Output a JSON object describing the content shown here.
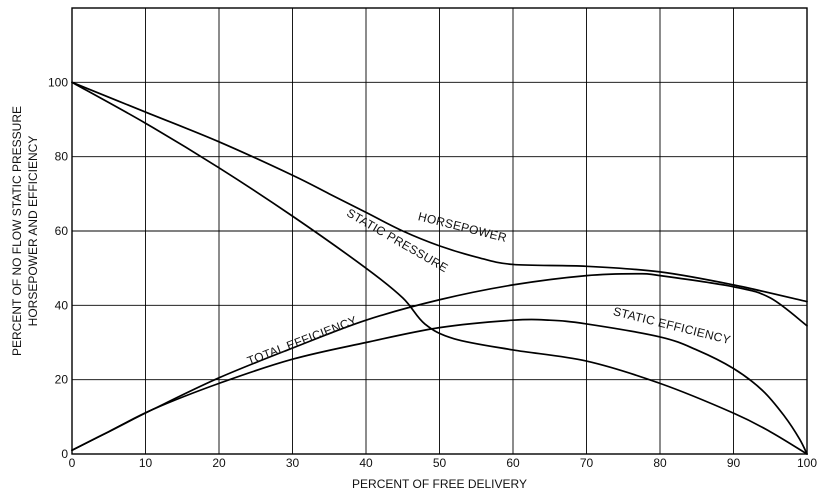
{
  "chart_data": {
    "type": "line",
    "title": "",
    "xlabel": "PERCENT OF FREE DELIVERY",
    "ylabel_lines": [
      "PERCENT OF NO FLOW STATIC PRESSURE",
      "HORSEPOWER AND EFFICIENCY"
    ],
    "xlim": [
      0,
      100
    ],
    "ylim": [
      0,
      120
    ],
    "xticks": [
      "0",
      "10",
      "20",
      "30",
      "40",
      "50",
      "60",
      "70",
      "80",
      "90",
      "100"
    ],
    "yticks": [
      "0",
      "20",
      "40",
      "60",
      "80",
      "100"
    ],
    "grid": true,
    "series": [
      {
        "name": "STATIC PRESSURE",
        "x": [
          0,
          10,
          20,
          30,
          40,
          45,
          48,
          52,
          60,
          70,
          80,
          90,
          95,
          100
        ],
        "y": [
          100,
          89,
          77,
          64,
          50,
          42,
          35,
          31,
          28,
          25,
          19,
          11,
          6,
          0
        ]
      },
      {
        "name": "HORSEPOWER",
        "x": [
          0,
          10,
          20,
          30,
          35,
          40,
          45,
          50,
          55,
          60,
          70,
          80,
          90,
          100
        ],
        "y": [
          100,
          92,
          84,
          75,
          70,
          65,
          60,
          56,
          53,
          51,
          50.5,
          49,
          45.5,
          41
        ]
      },
      {
        "name": "TOTAL EFFICIENCY",
        "x": [
          0,
          5,
          11,
          20,
          30,
          40,
          50,
          60,
          70,
          77,
          80,
          90,
          95,
          100
        ],
        "y": [
          1,
          6,
          12,
          20.5,
          28.5,
          36,
          41.5,
          45.5,
          48,
          48.5,
          48,
          45,
          42,
          34.5
        ]
      },
      {
        "name": "STATIC EFFICIENCY",
        "x": [
          0,
          5,
          11,
          20,
          30,
          40,
          50,
          60,
          65,
          70,
          80,
          85,
          90,
          94,
          97,
          99,
          100
        ],
        "y": [
          1,
          6,
          12,
          19,
          25.5,
          30,
          34,
          36,
          36,
          35,
          31.5,
          28,
          23,
          17,
          10,
          4,
          0
        ]
      }
    ],
    "annotations": [
      {
        "text": "STATIC PRESSURE",
        "x": 44,
        "y": 56.5,
        "angle": 30
      },
      {
        "text": "HORSEPOWER",
        "x": 53,
        "y": 60,
        "angle": 14
      },
      {
        "text": "TOTAL EFFICIENCY",
        "x": 31.5,
        "y": 29.5,
        "angle": -21
      },
      {
        "text": "STATIC EFFICIENCY",
        "x": 81.5,
        "y": 33.5,
        "angle": 14
      }
    ]
  }
}
